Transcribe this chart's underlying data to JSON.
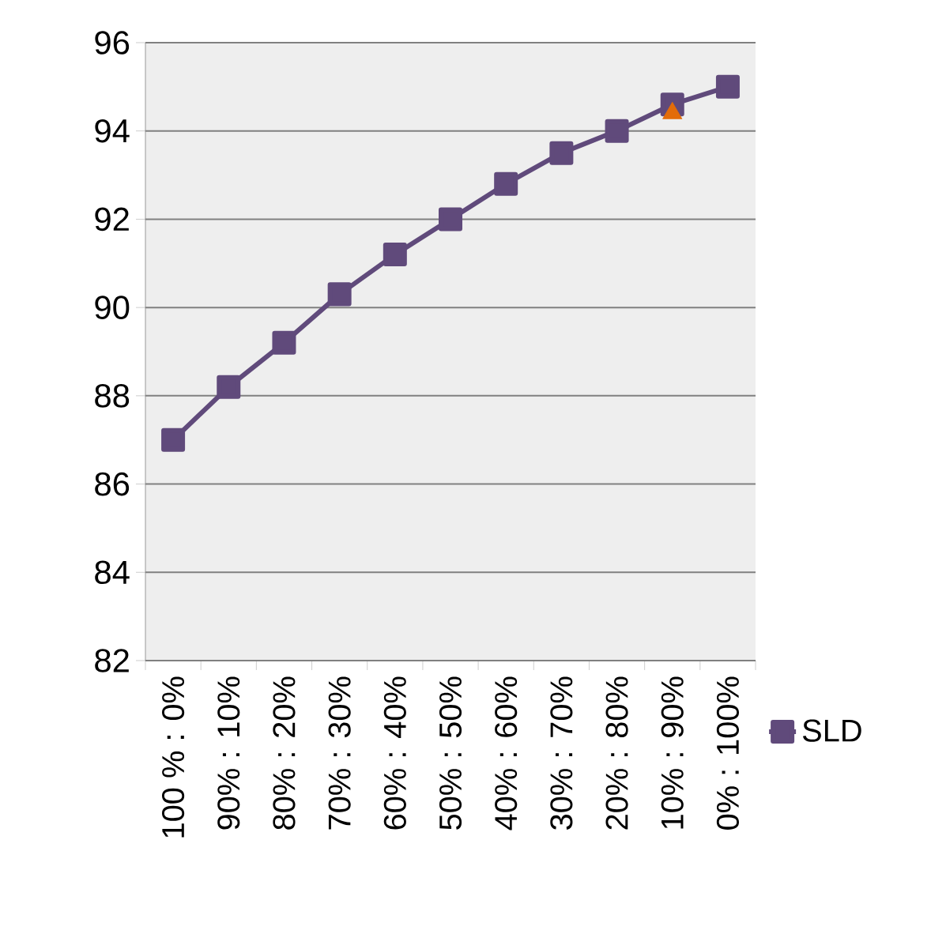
{
  "chart_data": {
    "type": "line",
    "categories": [
      "100 % : 0%",
      "90% : 10%",
      "80% : 20%",
      "70% : 30%",
      "60% : 40%",
      "50% : 50%",
      "40% : 60%",
      "30% : 70%",
      "20% : 80%",
      "10% : 90%",
      "0% : 100%"
    ],
    "series": [
      {
        "name": "SLD",
        "color": "#604a7b",
        "values": [
          87.0,
          88.2,
          89.2,
          90.3,
          91.2,
          92.0,
          92.8,
          93.5,
          94.0,
          94.6,
          95.0
        ]
      },
      {
        "type": "scatter",
        "marker": "triangle",
        "color": "#e36c09",
        "x": [
          "10% : 90%"
        ],
        "values": [
          94.4
        ]
      }
    ],
    "marker": "square",
    "ylim": [
      82,
      96
    ],
    "yticks": [
      82,
      84,
      86,
      88,
      90,
      92,
      94,
      96
    ],
    "grid": "y",
    "legend": "right"
  }
}
